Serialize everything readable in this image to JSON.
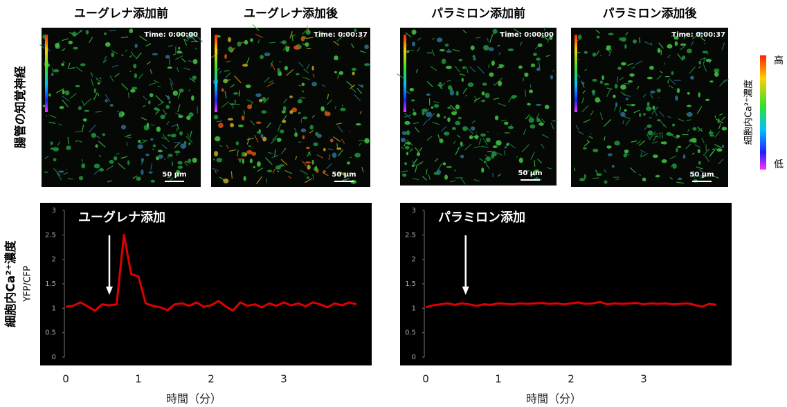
{
  "row_label": "腸管の知覚神経",
  "panels": [
    {
      "title": "ユーグレナ添加前",
      "time": "Time: 0:00:00",
      "scale": "50 μm"
    },
    {
      "title": "ユーグレナ添加後",
      "time": "Time: 0:00:37",
      "scale": "50 μm"
    },
    {
      "title": "パラミロン添加前",
      "time": "Time: 0:00:00",
      "scale": "50 μm"
    },
    {
      "title": "パラミロン添加後",
      "time": "Time: 0:00:37",
      "scale": "50 μm"
    }
  ],
  "colorbar": {
    "label": "細胞内Ca²⁺濃度",
    "high": "高",
    "low": "低"
  },
  "y_label": "細胞内Ca²⁺濃度",
  "y_sublabel": "YFP/CFP",
  "chart_data": [
    {
      "type": "line",
      "annotation": {
        "text": "ユーグレナ添加",
        "x": 0.6
      },
      "x": [
        0,
        0.1,
        0.2,
        0.3,
        0.4,
        0.5,
        0.6,
        0.7,
        0.8,
        0.9,
        1,
        1.1,
        1.2,
        1.3,
        1.4,
        1.5,
        1.6,
        1.7,
        1.8,
        1.9,
        2,
        2.1,
        2.2,
        2.3,
        2.4,
        2.5,
        2.6,
        2.7,
        2.8,
        2.9,
        3,
        3.1,
        3.2,
        3.3,
        3.4,
        3.5,
        3.6,
        3.7,
        3.8,
        3.9,
        4
      ],
      "series": [
        {
          "color": "#e00000",
          "values": [
            1.03,
            1.05,
            1.12,
            1.04,
            0.95,
            1.08,
            1.06,
            1.08,
            2.5,
            1.7,
            1.65,
            1.1,
            1.05,
            1.02,
            0.96,
            1.08,
            1.1,
            1.05,
            1.12,
            1.03,
            1.06,
            1.15,
            1.04,
            0.95,
            1.12,
            1.05,
            1.08,
            1.02,
            1.1,
            1.05,
            1.12,
            1.06,
            1.1,
            1.04,
            1.12,
            1.08,
            1.02,
            1.1,
            1.06,
            1.12,
            1.08
          ]
        }
      ],
      "xlim": [
        0,
        4.2
      ],
      "xticks": [
        0,
        1,
        2,
        3
      ],
      "ylim": [
        0,
        3
      ],
      "yticks": [
        0,
        0.5,
        1,
        1.5,
        2,
        2.5,
        3
      ],
      "xlabel": "時間（分）"
    },
    {
      "type": "line",
      "annotation": {
        "text": "パラミロン添加",
        "x": 0.55
      },
      "x": [
        0,
        0.1,
        0.2,
        0.3,
        0.4,
        0.5,
        0.6,
        0.7,
        0.8,
        0.9,
        1,
        1.1,
        1.2,
        1.3,
        1.4,
        1.5,
        1.6,
        1.7,
        1.8,
        1.9,
        2,
        2.1,
        2.2,
        2.3,
        2.4,
        2.5,
        2.6,
        2.7,
        2.8,
        2.9,
        3,
        3.1,
        3.2,
        3.3,
        3.4,
        3.5,
        3.6,
        3.7,
        3.8,
        3.9,
        4
      ],
      "series": [
        {
          "color": "#e00000",
          "values": [
            1.02,
            1.06,
            1.08,
            1.1,
            1.07,
            1.1,
            1.08,
            1.05,
            1.08,
            1.07,
            1.1,
            1.09,
            1.08,
            1.1,
            1.09,
            1.1,
            1.11,
            1.09,
            1.1,
            1.08,
            1.1,
            1.12,
            1.09,
            1.1,
            1.13,
            1.08,
            1.1,
            1.09,
            1.1,
            1.11,
            1.08,
            1.1,
            1.09,
            1.1,
            1.08,
            1.09,
            1.1,
            1.07,
            1.03,
            1.09,
            1.07
          ]
        }
      ],
      "xlim": [
        0,
        4.2
      ],
      "xticks": [
        0,
        1,
        2,
        3
      ],
      "ylim": [
        0,
        3
      ],
      "yticks": [
        0,
        0.5,
        1,
        1.5,
        2,
        2.5,
        3
      ],
      "xlabel": "時間（分）"
    }
  ]
}
